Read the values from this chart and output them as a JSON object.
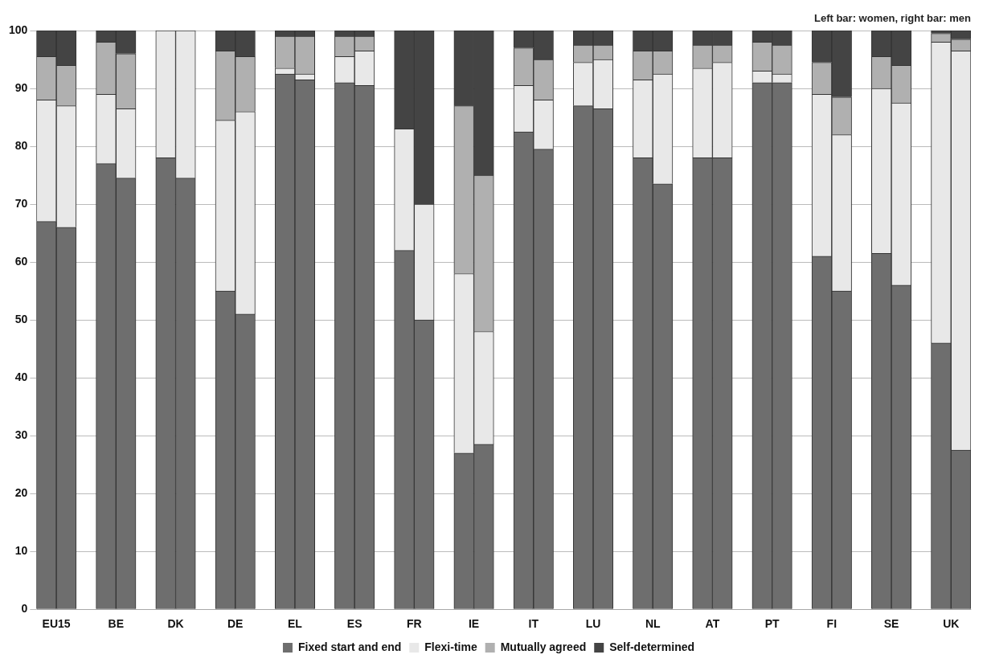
{
  "chart_data": {
    "type": "bar",
    "stacked": true,
    "grid": "y",
    "legend": "bottom",
    "annotations": [
      "Left bar: women, right bar: men"
    ],
    "categories": [
      "EU15",
      null,
      null,
      "BE",
      null,
      null,
      "DK",
      null,
      null,
      "DE",
      null,
      null,
      "EL",
      null,
      null,
      "ES",
      null,
      null,
      "FR",
      null,
      null,
      "IE",
      null,
      null,
      "IT",
      null,
      null,
      "LU",
      null,
      null,
      "NL",
      null,
      null,
      "AT",
      null,
      null,
      "PT",
      null,
      null,
      "FI",
      null,
      null,
      "SE",
      null,
      null,
      "UK",
      null
    ],
    "ylim": [
      0,
      100
    ],
    "yticks": [
      0,
      10,
      20,
      30,
      40,
      50,
      60,
      70,
      80,
      90,
      100
    ],
    "series": [
      {
        "name": "Fixed start and end",
        "color": "#6e6e6e",
        "values": [
          67,
          66,
          null,
          77,
          74.5,
          null,
          78,
          74.5,
          null,
          55,
          51,
          null,
          92.5,
          91.5,
          null,
          91,
          90.5,
          null,
          62,
          50,
          null,
          27,
          28.5,
          null,
          82.5,
          79.5,
          null,
          87,
          86.5,
          null,
          78,
          73.5,
          null,
          78,
          78,
          null,
          91,
          91,
          null,
          61,
          55,
          null,
          61.5,
          56,
          null,
          46,
          27.5
        ]
      },
      {
        "name": "Flexi-time",
        "color": "#e8e8e8",
        "values": [
          21,
          21,
          null,
          12,
          12,
          null,
          22,
          25.5,
          null,
          29.5,
          35,
          null,
          1,
          1,
          null,
          4.5,
          6,
          null,
          21,
          20,
          null,
          31,
          19.5,
          null,
          8,
          8.5,
          null,
          7.5,
          8.5,
          null,
          13.5,
          19,
          null,
          15.5,
          16.5,
          null,
          2,
          1.5,
          null,
          28,
          27,
          null,
          28.5,
          31.5,
          null,
          52,
          69
        ]
      },
      {
        "name": "Mutually agreed",
        "color": "#b0b0b0",
        "values": [
          7.5,
          7,
          null,
          9,
          9.5,
          null,
          0,
          0,
          null,
          12,
          9.5,
          null,
          5.5,
          6.5,
          null,
          3.5,
          2.5,
          null,
          0,
          0,
          null,
          29,
          27,
          null,
          6.5,
          7,
          null,
          3,
          2.5,
          null,
          5,
          4,
          null,
          4,
          3,
          null,
          5,
          5,
          null,
          5.5,
          6.5,
          null,
          5.5,
          6.5,
          null,
          1.5,
          2
        ]
      },
      {
        "name": "Self-determined",
        "color": "#444444",
        "values": [
          4.5,
          6,
          null,
          2,
          4,
          null,
          0,
          0,
          null,
          3.5,
          4.5,
          null,
          1,
          1,
          null,
          1,
          1,
          null,
          17,
          30,
          null,
          13,
          25,
          null,
          3,
          5,
          null,
          2.5,
          2.5,
          null,
          3.5,
          3.5,
          null,
          2.5,
          2.5,
          null,
          2,
          2.5,
          null,
          5.5,
          11.5,
          null,
          4.5,
          6,
          null,
          0.5,
          1.5
        ]
      }
    ]
  }
}
